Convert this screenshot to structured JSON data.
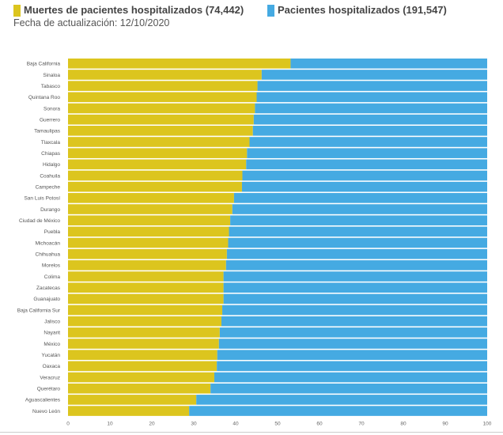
{
  "legend": {
    "deaths_label": "Muertes de pacientes hospitalizados (74,442)",
    "total_label": "Pacientes hospitalizados (191,547)"
  },
  "subtitle": "Fecha de actualización: 12/10/2020",
  "colors": {
    "deaths": "#dcc51e",
    "total": "#45aae2"
  },
  "chart_data": {
    "type": "bar",
    "orientation": "horizontal",
    "stacked": true,
    "categories": [
      "Baja California",
      "Sinaloa",
      "Tabasco",
      "Quintana Roo",
      "Sonora",
      "Guerrero",
      "Tamaulipas",
      "Tlaxcala",
      "Chiapas",
      "Hidalgo",
      "Coahuila",
      "Campeche",
      "San Luis Potosí",
      "Durango",
      "Ciudad de México",
      "Puebla",
      "Michoacán",
      "Chihuahua",
      "Morelos",
      "Colima",
      "Zacatecas",
      "Guanajuato",
      "Baja California Sur",
      "Jalisco",
      "Nayarit",
      "México",
      "Yucatán",
      "Oaxaca",
      "Veracruz",
      "Querétaro",
      "Aguascalientes",
      "Nuevo León"
    ],
    "series": [
      {
        "name": "Muertes de pacientes hospitalizados (74,442)",
        "values": [
          53.1,
          46.2,
          45.2,
          45.0,
          44.6,
          44.3,
          44.1,
          43.3,
          42.7,
          42.5,
          41.6,
          41.5,
          39.6,
          39.2,
          38.7,
          38.4,
          38.2,
          37.9,
          37.7,
          37.1,
          37.1,
          37.1,
          36.8,
          36.6,
          36.2,
          36.0,
          35.6,
          35.5,
          34.9,
          34.0,
          30.6,
          28.9
        ]
      },
      {
        "name": "Pacientes hospitalizados (191,547)",
        "values": [
          46.9,
          53.8,
          54.8,
          55.0,
          55.4,
          55.7,
          55.9,
          56.7,
          57.3,
          57.5,
          58.4,
          58.5,
          60.4,
          60.8,
          61.3,
          61.6,
          61.8,
          62.1,
          62.3,
          62.9,
          62.9,
          62.9,
          63.2,
          63.4,
          63.8,
          64.0,
          64.4,
          64.5,
          65.1,
          66.0,
          69.4,
          71.1
        ]
      }
    ],
    "xlim": [
      0,
      100
    ],
    "xticks": [
      "0",
      "10",
      "20",
      "30",
      "40",
      "50",
      "60",
      "70",
      "80",
      "90",
      "100"
    ]
  }
}
